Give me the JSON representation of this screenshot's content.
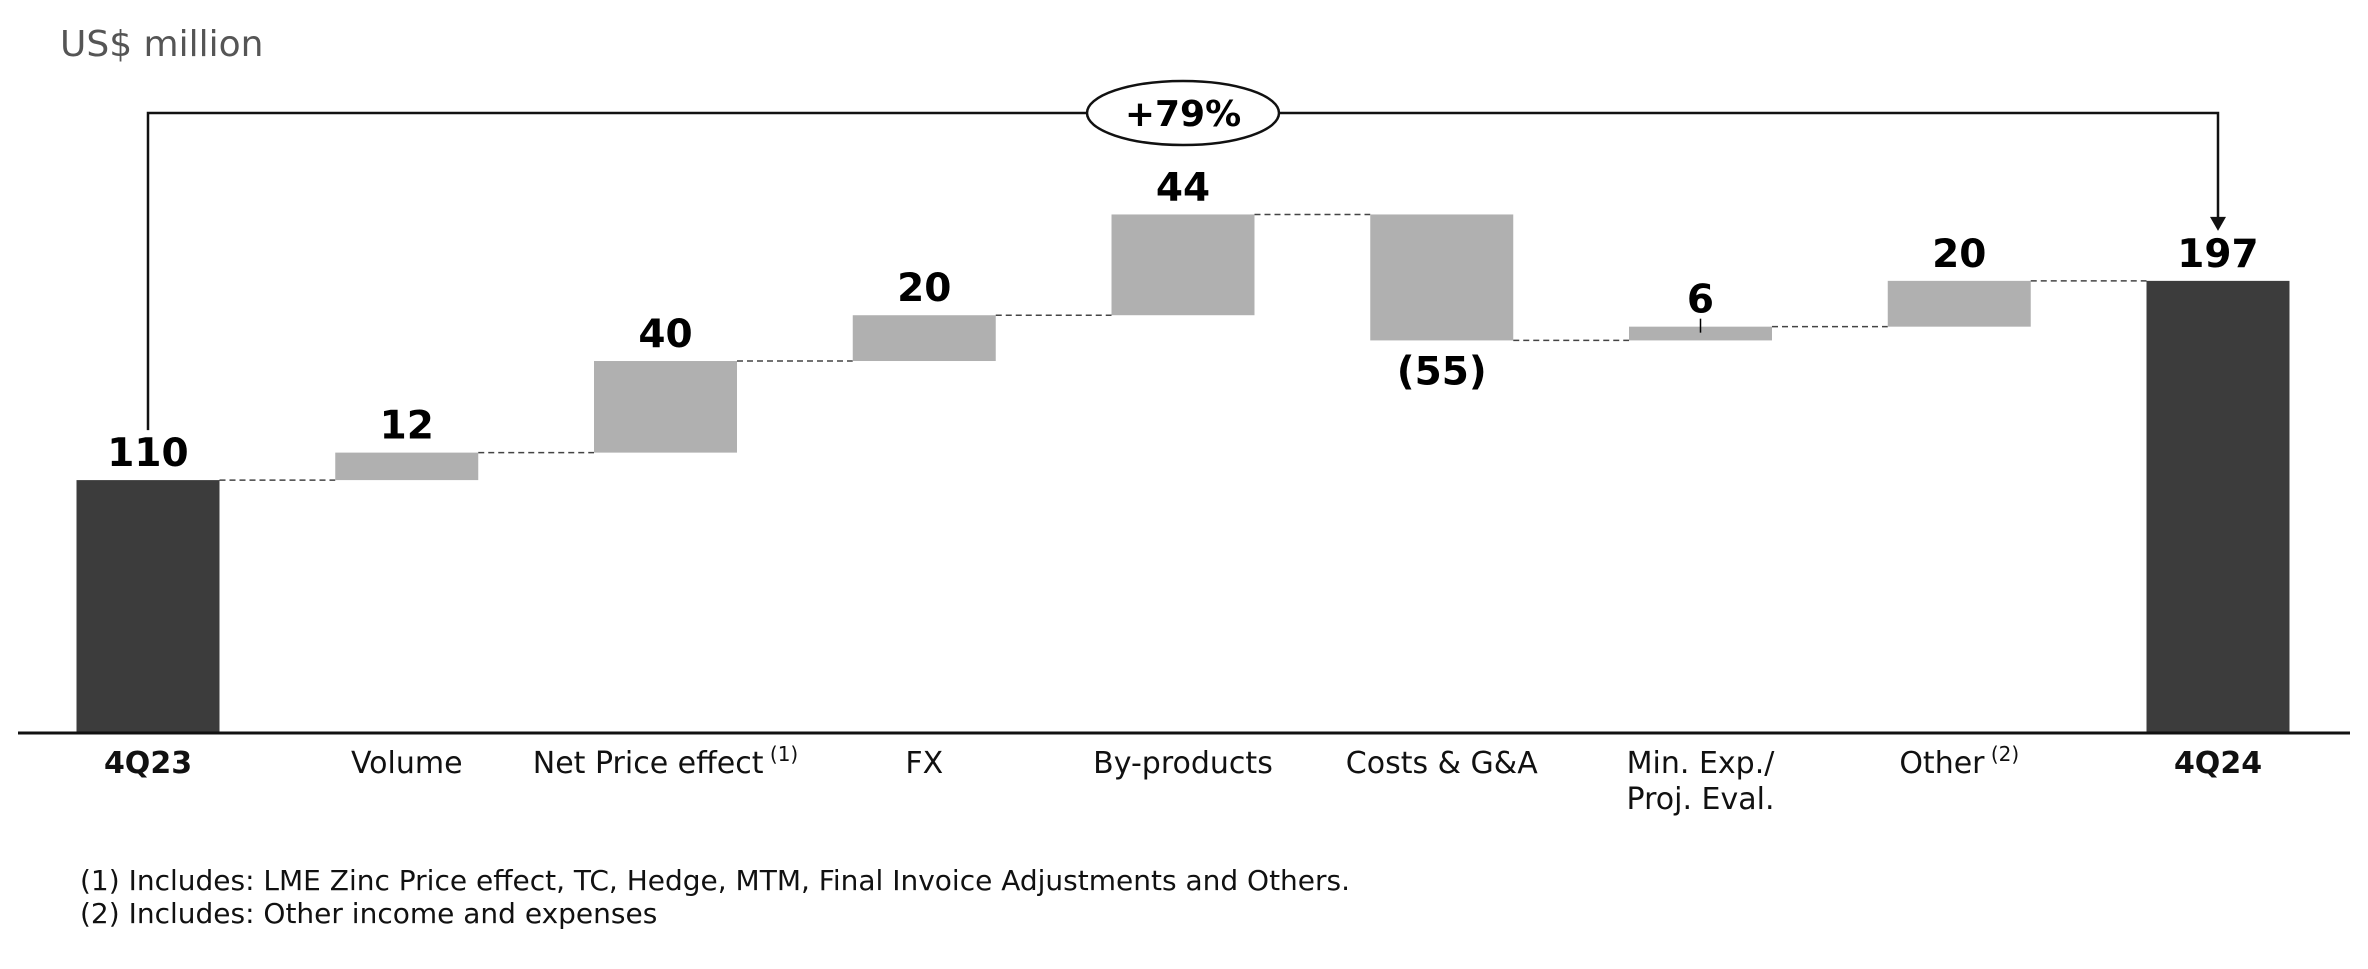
{
  "chart_data": {
    "type": "waterfall",
    "unit_label": "US$ million",
    "categories": [
      "4Q23",
      "Volume",
      "Net Price effect",
      "FX",
      "By-products",
      "Costs & G&A",
      "Min. Exp./ Proj. Eval.",
      "Other",
      "4Q24"
    ],
    "category_superscripts": [
      "",
      "",
      "(1)",
      "",
      "",
      "",
      "",
      "(2)",
      ""
    ],
    "category_bold": [
      true,
      false,
      false,
      false,
      false,
      false,
      false,
      false,
      true
    ],
    "values": [
      110,
      12,
      40,
      20,
      44,
      -55,
      6,
      20,
      197
    ],
    "kinds": [
      "total",
      "delta",
      "delta",
      "delta",
      "delta",
      "delta",
      "delta",
      "delta",
      "total"
    ],
    "data_labels": [
      "110",
      "12",
      "40",
      "20",
      "44",
      "(55)",
      "6",
      "20",
      "197"
    ],
    "ylim": [
      0,
      230
    ],
    "change_annotation": "+79%",
    "colors": {
      "total": "#3c3c3c",
      "delta": "#b0b0b0"
    },
    "footnotes": [
      "(1) Includes: LME Zinc Price effect, TC, Hedge, MTM, Final Invoice Adjustments and Others.",
      "(2) Includes: Other income and expenses"
    ]
  }
}
